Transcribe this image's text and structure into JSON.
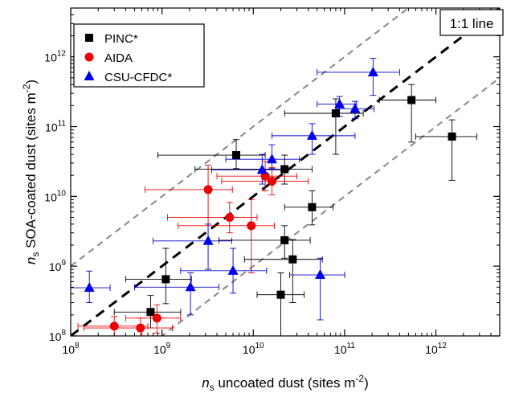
{
  "chart_data": {
    "type": "scatter",
    "x_scale": "log",
    "y_scale": "log",
    "xlim": [
      100000000,
      5000000000000
    ],
    "ylim": [
      100000000,
      5000000000000
    ],
    "x_ticks": [
      {
        "value": 100000000,
        "base": "10",
        "exp": "8"
      },
      {
        "value": 1000000000,
        "base": "10",
        "exp": "9"
      },
      {
        "value": 10000000000,
        "base": "10",
        "exp": "10"
      },
      {
        "value": 100000000000,
        "base": "10",
        "exp": "11"
      },
      {
        "value": 1000000000000,
        "base": "10",
        "exp": "12"
      }
    ],
    "y_ticks": [
      {
        "value": 100000000,
        "base": "10",
        "exp": "8"
      },
      {
        "value": 1000000000,
        "base": "10",
        "exp": "9"
      },
      {
        "value": 10000000000,
        "base": "10",
        "exp": "10"
      },
      {
        "value": 100000000000,
        "base": "10",
        "exp": "11"
      },
      {
        "value": 1000000000000,
        "base": "10",
        "exp": "12"
      }
    ],
    "xlabel": {
      "n": "n",
      "sub": "s",
      "text": " uncoated dust (sites m",
      "sup": "-2",
      "close": ")"
    },
    "ylabel": {
      "n": "n",
      "sub": "s",
      "text": " SOA-coated dust (sites m",
      "sup": "-2",
      "close": ")"
    },
    "one_to_one_label": "1:1 line",
    "legend": {
      "placement": "top-left"
    },
    "reference_lines": [
      {
        "kind": "1:1",
        "factor": 1,
        "color": "#000000",
        "dash": "long"
      },
      {
        "kind": "factor-10-upper",
        "factor": 10,
        "color": "#888888",
        "dash": "short"
      },
      {
        "kind": "factor-10-lower",
        "factor": 0.1,
        "color": "#888888",
        "dash": "short"
      }
    ],
    "series": [
      {
        "name": "PINC*",
        "marker": "square",
        "color": "#000000",
        "error_color": "#000000",
        "points": [
          {
            "x": 750000000.0,
            "y": 220000000.0,
            "xerr": [
              300000000.0,
              1600000000.0
            ],
            "yerr": [
              130000000.0,
              380000000.0
            ]
          },
          {
            "x": 1100000000.0,
            "y": 650000000.0,
            "xerr": [
              400000000.0,
              2100000000.0
            ],
            "yerr": [
              290000000.0,
              1800000000.0
            ]
          },
          {
            "x": 6500000000.0,
            "y": 39000000000.0,
            "xerr": [
              900000000.0,
              13500000000.0
            ],
            "yerr": [
              25000000000.0,
              65000000000.0
            ]
          },
          {
            "x": 22000000000.0,
            "y": 24500000000.0,
            "xerr": [
              2300000000.0,
              44000000000.0
            ],
            "yerr": [
              15000000000.0,
              39000000000.0
            ]
          },
          {
            "x": 22000000000.0,
            "y": 2350000000.0,
            "xerr": [
              4200000000.0,
              42000000000.0
            ],
            "yerr": [
              1300000000.0,
              3800000000.0
            ]
          },
          {
            "x": 27000000000.0,
            "y": 1250000000.0,
            "xerr": [
              8000000000.0,
              57000000000.0
            ],
            "yerr": [
              300000000.0,
              2400000000.0
            ]
          },
          {
            "x": 20000000000.0,
            "y": 390000000.0,
            "xerr": [
              11000000000.0,
              36000000000.0
            ],
            "yerr": [
              100000000.0,
              800000000.0
            ]
          },
          {
            "x": 44000000000.0,
            "y": 7000000000.0,
            "xerr": [
              22000000000.0,
              75000000000.0
            ],
            "yerr": [
              3900000000.0,
              12000000000.0
            ]
          },
          {
            "x": 80000000000.0,
            "y": 155000000000.0,
            "xerr": [
              22000000000.0,
              160000000000.0
            ],
            "yerr": [
              40000000000.0,
              250000000000.0
            ]
          },
          {
            "x": 540000000000.0,
            "y": 240000000000.0,
            "xerr": [
              240000000000.0,
              1000000000000.0
            ],
            "yerr": [
              60000000000.0,
              400000000000.0
            ]
          },
          {
            "x": 1500000000000.0,
            "y": 72000000000.0,
            "xerr": [
              600000000000.0,
              2800000000000.0
            ],
            "yerr": [
              17000000000.0,
              125000000000.0
            ]
          }
        ]
      },
      {
        "name": "AIDA",
        "marker": "circle",
        "color": "#ee0000",
        "error_color": "#ee0000",
        "points": [
          {
            "x": 300000000.0,
            "y": 138000000.0,
            "xerr": [
              120000000.0,
              700000000.0
            ],
            "yerr": [
              100000000.0,
              190000000.0
            ]
          },
          {
            "x": 580000000.0,
            "y": 130000000.0,
            "xerr": [
              140000000.0,
              1300000000.0
            ],
            "yerr": [
              100000000.0,
              180000000.0
            ]
          },
          {
            "x": 880000000.0,
            "y": 180000000.0,
            "xerr": [
              400000000.0,
              1600000000.0
            ],
            "yerr": [
              110000000.0,
              280000000.0
            ]
          },
          {
            "x": 3200000000.0,
            "y": 12500000000.0,
            "xerr": [
              650000000.0,
              5900000000.0
            ],
            "yerr": [
              2200000000.0,
              28000000000.0
            ]
          },
          {
            "x": 5500000000.0,
            "y": 5000000000.0,
            "xerr": [
              1150000000.0,
              11000000000.0
            ],
            "yerr": [
              3000000000.0,
              8200000000.0
            ]
          },
          {
            "x": 9500000000.0,
            "y": 3800000000.0,
            "xerr": [
              1500000000.0,
              17000000000.0
            ],
            "yerr": [
              800000000.0,
              9000000000.0
            ]
          },
          {
            "x": 13500000000.0,
            "y": 19500000000.0,
            "xerr": [
              4000000000.0,
              30000000000.0
            ],
            "yerr": [
              12000000000.0,
              32000000000.0
            ]
          },
          {
            "x": 16000000000.0,
            "y": 16500000000.0,
            "xerr": [
              4500000000.0,
              40000000000.0
            ],
            "yerr": [
              10500000000.0,
              26000000000.0
            ]
          }
        ]
      },
      {
        "name": "CSU-CFDC*",
        "marker": "triangle",
        "color": "#0000ee",
        "error_color": "#0000cc",
        "points": [
          {
            "x": 160000000.0,
            "y": 490000000.0,
            "xerr": [
              100000000.0,
              270000000.0
            ],
            "yerr": [
              300000000.0,
              850000000.0
            ]
          },
          {
            "x": 2050000000.0,
            "y": 500000000.0,
            "xerr": [
              500000000.0,
              4200000000.0
            ],
            "yerr": [
              200000000.0,
              800000000.0
            ]
          },
          {
            "x": 3200000000.0,
            "y": 2300000000.0,
            "xerr": [
              800000000.0,
              5800000000.0
            ],
            "yerr": [
              900000000.0,
              4000000000.0
            ]
          },
          {
            "x": 6000000000.0,
            "y": 860000000.0,
            "xerr": [
              1600000000.0,
              14000000000.0
            ],
            "yerr": [
              410000000.0,
              1800000000.0
            ]
          },
          {
            "x": 12500000000.0,
            "y": 24000000000.0,
            "xerr": [
              3500000000.0,
              22000000000.0
            ],
            "yerr": [
              15000000000.0,
              40000000000.0
            ]
          },
          {
            "x": 16000000000.0,
            "y": 34000000000.0,
            "xerr": [
              5000000000.0,
              32000000000.0
            ],
            "yerr": [
              25000000000.0,
              55000000000.0
            ]
          },
          {
            "x": 44000000000.0,
            "y": 74000000000.0,
            "xerr": [
              16000000000.0,
              130000000000.0
            ],
            "yerr": [
              40000000000.0,
              110000000000.0
            ]
          },
          {
            "x": 88000000000.0,
            "y": 210000000000.0,
            "xerr": [
              50000000000.0,
              135000000000.0
            ],
            "yerr": [
              140000000000.0,
              270000000000.0
            ]
          },
          {
            "x": 130000000000.0,
            "y": 180000000000.0,
            "xerr": [
              80000000000.0,
              210000000000.0
            ],
            "yerr": [
              130000000000.0,
              230000000000.0
            ]
          },
          {
            "x": 205000000000.0,
            "y": 600000000000.0,
            "xerr": [
              50000000000.0,
              400000000000.0
            ],
            "yerr": [
              280000000000.0,
              950000000000.0
            ]
          },
          {
            "x": 54000000000.0,
            "y": 750000000.0,
            "xerr": [
              25000000000.0,
              100000000000.0
            ],
            "yerr": [
              170000000.0,
              1300000000.0
            ]
          }
        ]
      }
    ]
  }
}
